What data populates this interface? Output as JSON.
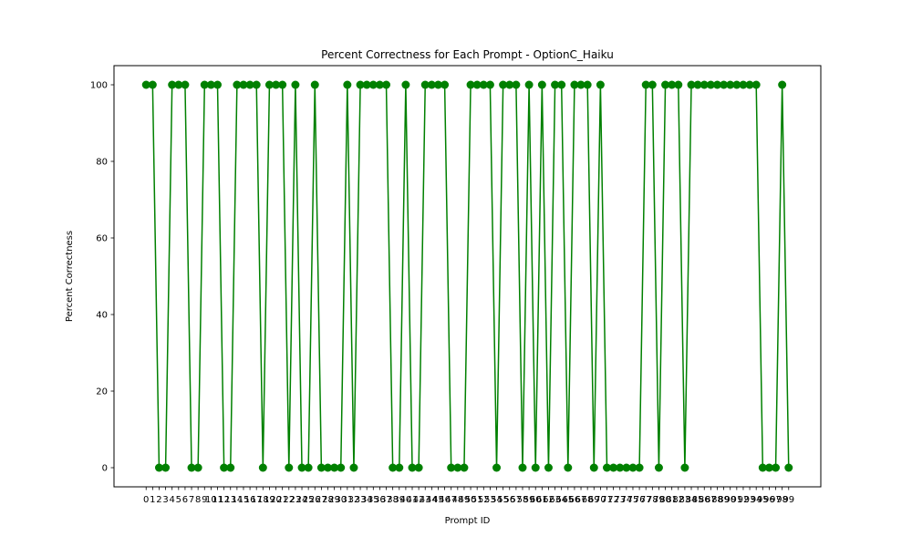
{
  "chart_data": {
    "type": "line",
    "title": "Percent Correctness for Each Prompt - OptionC_Haiku",
    "xlabel": "Prompt ID",
    "ylabel": "Percent Correctness",
    "xlim": [
      -4.95,
      103.95
    ],
    "ylim": [
      -5,
      105
    ],
    "yticks": [
      0,
      20,
      40,
      60,
      80,
      100
    ],
    "grid": false,
    "marker": "o",
    "color": "#008000",
    "series": [
      {
        "x": [
          0,
          1,
          2,
          3,
          4,
          5,
          6,
          7,
          8,
          9,
          10,
          11,
          12,
          13,
          14,
          15,
          16,
          17,
          18,
          19,
          20,
          21,
          22,
          23,
          24,
          25,
          26,
          27,
          28,
          29,
          30,
          31,
          32,
          33,
          34,
          35,
          36,
          37,
          38,
          39,
          40,
          41,
          42,
          43,
          44,
          45,
          46,
          47,
          48,
          49,
          50,
          51,
          52,
          53,
          54,
          55,
          56,
          57,
          58,
          59,
          60,
          61,
          62,
          63,
          64,
          65,
          66,
          67,
          68,
          69,
          70,
          71,
          72,
          73,
          74,
          75,
          76,
          77,
          78,
          79,
          80,
          81,
          82,
          83,
          84,
          85,
          86,
          87,
          88,
          89,
          90,
          91,
          92,
          93,
          94,
          95,
          96,
          97,
          98,
          99
        ],
        "values": [
          100,
          100,
          0,
          0,
          100,
          100,
          100,
          0,
          0,
          100,
          100,
          100,
          0,
          0,
          100,
          100,
          100,
          100,
          0,
          100,
          100,
          100,
          0,
          100,
          0,
          0,
          100,
          0,
          0,
          0,
          0,
          100,
          0,
          100,
          100,
          100,
          100,
          100,
          0,
          0,
          100,
          0,
          0,
          100,
          100,
          100,
          100,
          0,
          0,
          0,
          100,
          100,
          100,
          100,
          0,
          100,
          100,
          100,
          0,
          100,
          0,
          100,
          0,
          100,
          100,
          0,
          100,
          100,
          100,
          0,
          100,
          0,
          0,
          0,
          0,
          0,
          0,
          100,
          100,
          0,
          100,
          100,
          100,
          0,
          100,
          100,
          100,
          100,
          100,
          100,
          100,
          100,
          100,
          100,
          100,
          0,
          0,
          0,
          100,
          0
        ]
      }
    ],
    "xticks": [
      "0",
      "1",
      "2",
      "3",
      "4",
      "5",
      "6",
      "7",
      "8",
      "9",
      "10",
      "11",
      "12",
      "13",
      "14",
      "15",
      "16",
      "17",
      "18",
      "19",
      "20",
      "21",
      "22",
      "23",
      "24",
      "25",
      "26",
      "27",
      "28",
      "29",
      "30",
      "31",
      "32",
      "33",
      "34",
      "35",
      "36",
      "37",
      "38",
      "39",
      "40",
      "41",
      "42",
      "43",
      "44",
      "45",
      "46",
      "47",
      "48",
      "49",
      "50",
      "51",
      "52",
      "53",
      "54",
      "55",
      "56",
      "57",
      "58",
      "59",
      "60",
      "61",
      "62",
      "63",
      "64",
      "65",
      "66",
      "67",
      "68",
      "69",
      "70",
      "71",
      "72",
      "73",
      "74",
      "75",
      "76",
      "77",
      "78",
      "79",
      "80",
      "81",
      "82",
      "83",
      "84",
      "85",
      "86",
      "87",
      "88",
      "89",
      "90",
      "91",
      "92",
      "93",
      "94",
      "95",
      "96",
      "97",
      "98",
      "99"
    ]
  }
}
